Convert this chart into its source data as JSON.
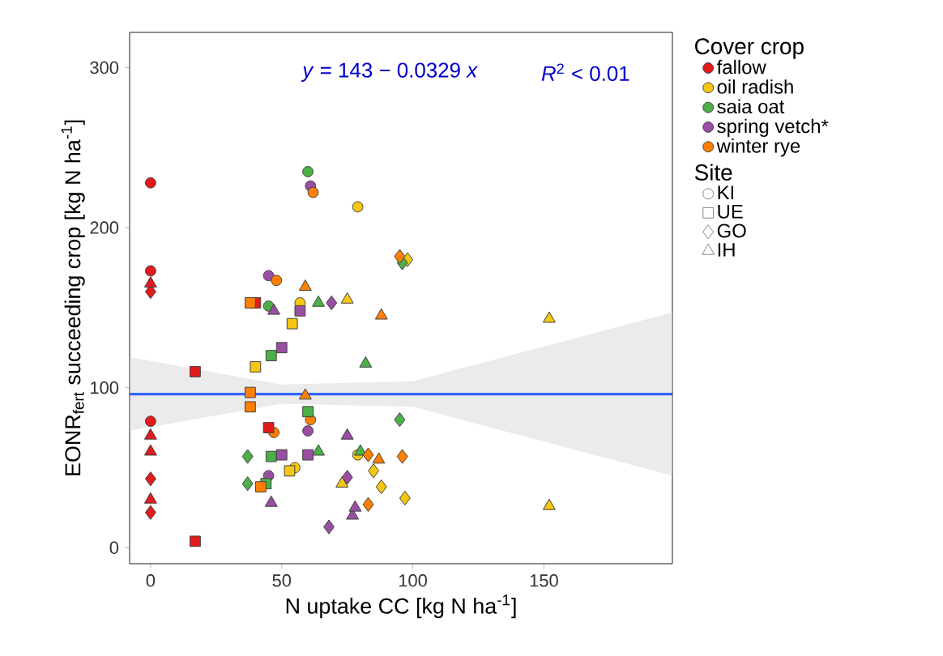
{
  "chart_data": {
    "type": "scatter",
    "xlabel": "N uptake CC [kg N ha$^{-1}$]",
    "ylabel": "EONR$_{fert}$ succeeding crop [kg N ha$^{-1}$]",
    "legend_title": [
      "Cover crop",
      "Site"
    ],
    "annotations": [
      "*y* = 143 − 0.0329 *x*",
      "*R*$^{2}$ < 0.01"
    ],
    "xlim": [
      -8,
      199
    ],
    "ylim": [
      -10,
      322
    ],
    "xticks": [
      0,
      50,
      100,
      150
    ],
    "yticks": [
      0,
      100,
      200,
      300
    ],
    "grid": false,
    "legend": "right",
    "series": [
      {
        "type": "line",
        "color": "#3366ff",
        "marker": "none",
        "x": [
          -8,
          50,
          100,
          199
        ],
        "values": [
          96,
          96,
          96,
          96
        ],
        "lower": [
          73,
          90,
          88,
          45
        ],
        "upper": [
          119,
          102,
          104,
          147
        ]
      },
      {
        "name": "fallow",
        "color": "#e31a1c",
        "marker": "circle",
        "x": [
          0,
          0,
          0
        ],
        "values": [
          228,
          173,
          79
        ]
      },
      {
        "name": "oil radish",
        "color": "#f5c710",
        "marker": "circle",
        "x": [
          57,
          79,
          55,
          79
        ],
        "values": [
          153,
          213,
          50,
          58
        ]
      },
      {
        "name": "saia oat",
        "color": "#4daf4a",
        "marker": "circle",
        "x": [
          45,
          60
        ],
        "values": [
          151,
          235
        ]
      },
      {
        "name": "spring vetch*",
        "color": "#984ea3",
        "marker": "circle",
        "x": [
          45,
          61,
          60,
          45
        ],
        "values": [
          170,
          226,
          73,
          45
        ]
      },
      {
        "name": "winter rye",
        "color": "#ff7f00",
        "marker": "circle",
        "x": [
          48,
          62,
          61,
          47
        ],
        "values": [
          167,
          222,
          80,
          72
        ]
      },
      {
        "color": "#e31a1c",
        "marker": "square",
        "x": [
          17,
          17,
          40,
          45
        ],
        "values": [
          110,
          4,
          153,
          75
        ]
      },
      {
        "color": "#e31a1c",
        "marker": "diamond",
        "x": [
          0,
          0,
          0
        ],
        "values": [
          160,
          43,
          22
        ]
      },
      {
        "color": "#e31a1c",
        "marker": "triangle",
        "x": [
          0,
          0,
          0,
          0
        ],
        "values": [
          165,
          70,
          60,
          30
        ]
      },
      {
        "color": "#f5c710",
        "marker": "square",
        "x": [
          40,
          54,
          53
        ],
        "values": [
          113,
          140,
          48
        ]
      },
      {
        "color": "#f5c710",
        "marker": "diamond",
        "x": [
          98,
          85,
          88,
          97
        ],
        "values": [
          180,
          48,
          38,
          31
        ]
      },
      {
        "color": "#f5c710",
        "marker": "triangle",
        "x": [
          75,
          73,
          152,
          152
        ],
        "values": [
          155,
          40,
          143,
          26
        ]
      },
      {
        "color": "#4daf4a",
        "marker": "square",
        "x": [
          46,
          60,
          46,
          44
        ],
        "values": [
          120,
          85,
          57,
          40
        ]
      },
      {
        "color": "#4daf4a",
        "marker": "diamond",
        "x": [
          96,
          37,
          37,
          95
        ],
        "values": [
          178,
          57,
          40,
          80
        ]
      },
      {
        "color": "#4daf4a",
        "marker": "triangle",
        "x": [
          64,
          82,
          64,
          80
        ],
        "values": [
          153,
          115,
          60,
          60
        ]
      },
      {
        "color": "#984ea3",
        "marker": "square",
        "x": [
          50,
          57,
          50,
          60
        ],
        "values": [
          125,
          148,
          58,
          58
        ]
      },
      {
        "color": "#984ea3",
        "marker": "diamond",
        "x": [
          69,
          68,
          75
        ],
        "values": [
          153,
          13,
          44
        ]
      },
      {
        "color": "#984ea3",
        "marker": "triangle",
        "x": [
          47,
          46,
          75,
          77,
          78
        ],
        "values": [
          148,
          28,
          70,
          20,
          25
        ]
      },
      {
        "color": "#ff7f00",
        "marker": "square",
        "x": [
          38,
          38,
          38,
          42
        ],
        "values": [
          153,
          97,
          88,
          38
        ]
      },
      {
        "color": "#ff7f00",
        "marker": "diamond",
        "x": [
          95,
          83,
          96,
          83
        ],
        "values": [
          182,
          58,
          57,
          27
        ]
      },
      {
        "color": "#ff7f00",
        "marker": "triangle",
        "x": [
          59,
          88,
          59,
          87
        ],
        "values": [
          163,
          145,
          95,
          55
        ]
      },
      {
        "name": "KI",
        "marker": "circle"
      },
      {
        "name": "UE",
        "marker": "square"
      },
      {
        "name": "GO",
        "marker": "diamond"
      },
      {
        "name": "IH",
        "marker": "triangle"
      }
    ]
  }
}
